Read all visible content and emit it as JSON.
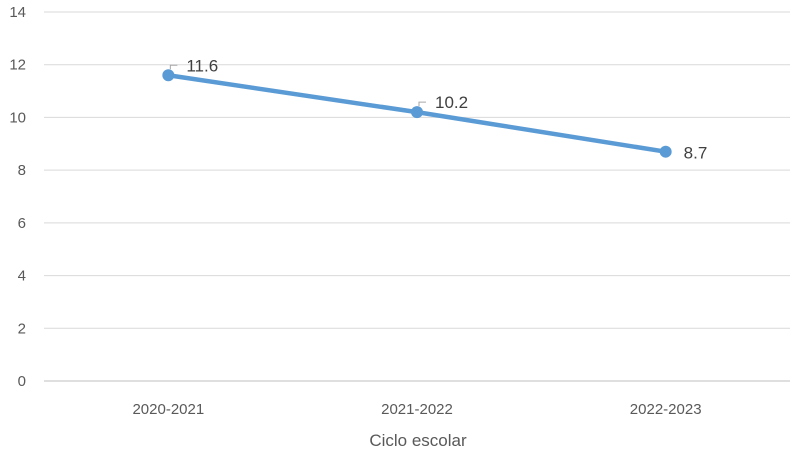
{
  "chart_data": {
    "type": "line",
    "categories": [
      "2020-2021",
      "2021-2022",
      "2022-2023"
    ],
    "series": [
      {
        "values": [
          11.6,
          10.2,
          8.7
        ],
        "data_labels": [
          "11.6",
          "10.2",
          "8.7"
        ]
      }
    ],
    "xlabel": "Ciclo escolar",
    "ylabel": "",
    "ylim": [
      0,
      14
    ],
    "yticks": [
      0,
      2,
      4,
      6,
      8,
      10,
      12,
      14
    ],
    "ytick_labels": [
      "0",
      "2",
      "4",
      "6",
      "8",
      "10",
      "12",
      "14"
    ],
    "grid": true,
    "legend": "none",
    "colors": {
      "line": "#5b9bd5",
      "grid": "#d9d9d9",
      "axis": "#bfbfbf",
      "text": "#595959"
    }
  }
}
